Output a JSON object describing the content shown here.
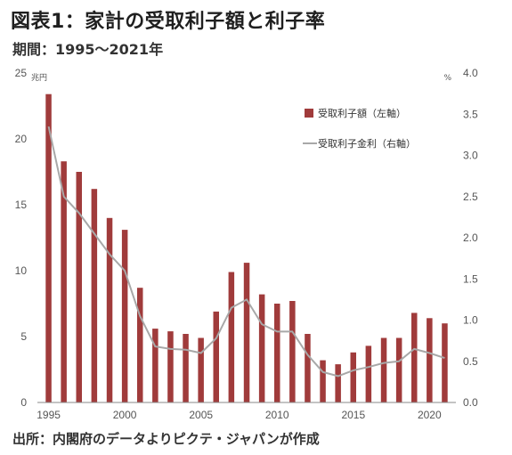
{
  "title": "図表1：家計の受取利子額と利子率",
  "subtitle": "期間：1995～2021年",
  "source": "出所：内閣府のデータよりピクテ・ジャパンが作成",
  "colors": {
    "bar": "#A03B3B",
    "line": "#A8A8A8",
    "axis": "#888888"
  },
  "chart_data": {
    "type": "bar+line",
    "categories": [
      "1995",
      "1996",
      "1997",
      "1998",
      "1999",
      "2000",
      "2001",
      "2002",
      "2003",
      "2004",
      "2005",
      "2006",
      "2007",
      "2008",
      "2009",
      "2010",
      "2011",
      "2012",
      "2013",
      "2014",
      "2015",
      "2016",
      "2017",
      "2018",
      "2019",
      "2020",
      "2021"
    ],
    "x_tick_labels": [
      "1995",
      "2000",
      "2005",
      "2010",
      "2015",
      "2020"
    ],
    "series": [
      {
        "name": "受取利子額（左軸）",
        "type": "bar",
        "axis": "left",
        "values": [
          23.4,
          18.3,
          17.5,
          16.2,
          14.0,
          13.1,
          8.7,
          5.6,
          5.4,
          5.2,
          4.9,
          6.9,
          9.9,
          10.6,
          8.2,
          7.5,
          7.7,
          5.2,
          3.2,
          2.9,
          3.8,
          4.3,
          4.9,
          4.9,
          6.8,
          6.4,
          6.0
        ]
      },
      {
        "name": "受取利子金利（右軸）",
        "type": "line",
        "axis": "right",
        "values": [
          3.35,
          2.5,
          2.3,
          2.05,
          1.8,
          1.6,
          1.05,
          0.68,
          0.65,
          0.64,
          0.6,
          0.78,
          1.15,
          1.25,
          0.95,
          0.86,
          0.86,
          0.58,
          0.37,
          0.32,
          0.39,
          0.43,
          0.48,
          0.5,
          0.65,
          0.6,
          0.54
        ]
      }
    ],
    "left_axis": {
      "unit": "兆円",
      "ylim": [
        0,
        25
      ],
      "ticks": [
        "0",
        "5",
        "10",
        "15",
        "20",
        "25"
      ]
    },
    "right_axis": {
      "unit": "%",
      "ylim": [
        0,
        4
      ],
      "ticks": [
        "0.0",
        "0.5",
        "1.0",
        "1.5",
        "2.0",
        "2.5",
        "3.0",
        "3.5",
        "4.0"
      ]
    },
    "grid": false,
    "legend_position": "top-right"
  }
}
